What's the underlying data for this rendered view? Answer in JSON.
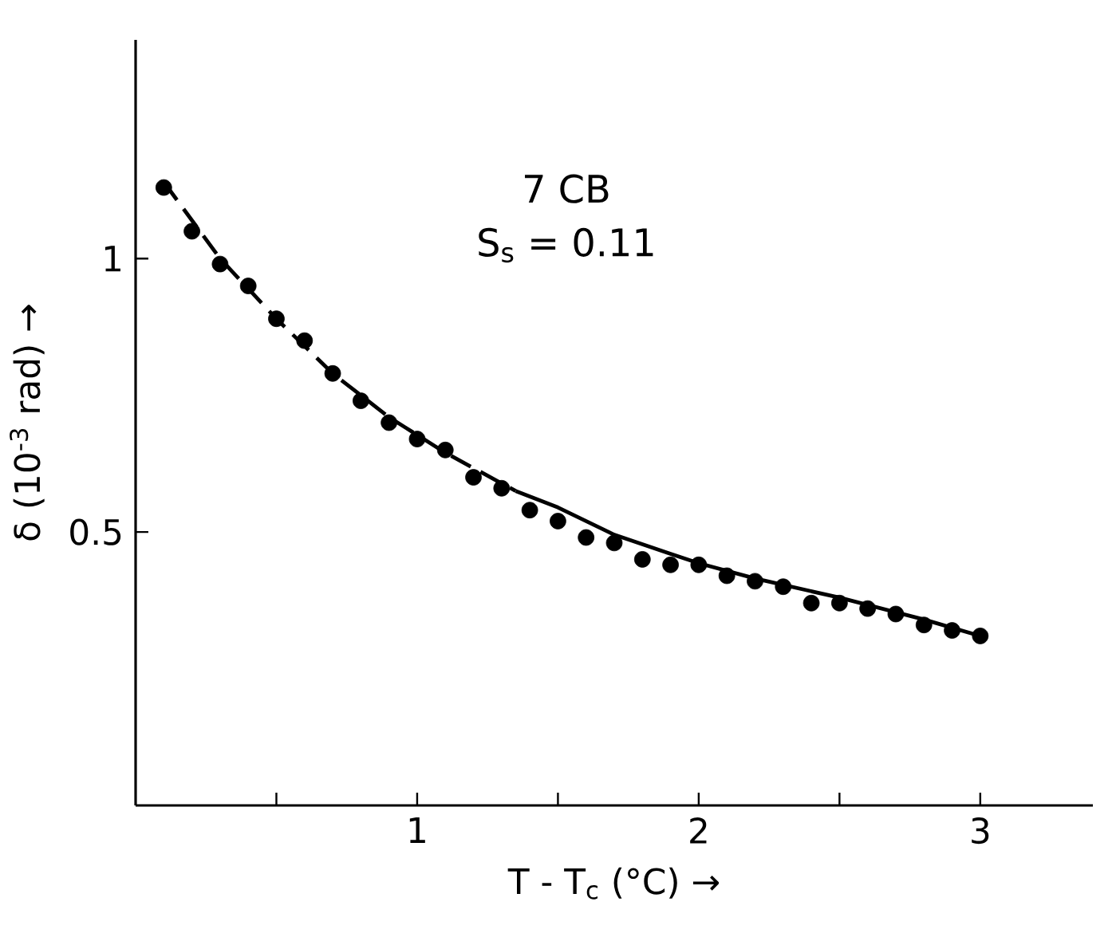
{
  "chart_data": {
    "type": "scatter",
    "xlabel": "T - T$_{c}$ (°C) →",
    "ylabel": "δ (10$^{-3}$ rad) →",
    "annotations": [
      "7 CB",
      "S$_{s}$ = 0.11"
    ],
    "xlim": [
      0,
      3.4
    ],
    "ylim": [
      0,
      1.4
    ],
    "xticks": [
      {
        "value": 0.5,
        "label": null
      },
      1,
      {
        "value": 1.5,
        "label": null
      },
      2,
      {
        "value": 2.5,
        "label": null
      },
      3
    ],
    "yticks": [
      0.5,
      1
    ],
    "grid": false,
    "legend": false,
    "series": [
      {
        "color": "#000000",
        "marker": "circle",
        "x": [
          0.1,
          0.2,
          0.3,
          0.4,
          0.5,
          0.6,
          0.7,
          0.8,
          0.9,
          1.0,
          1.1,
          1.2,
          1.3,
          1.4,
          1.5,
          1.6,
          1.7,
          1.8,
          1.9,
          2.0,
          2.1,
          2.2,
          2.3,
          2.4,
          2.5,
          2.6,
          2.7,
          2.8,
          2.9,
          3.0
        ],
        "values": [
          1.13,
          1.05,
          0.99,
          0.95,
          0.89,
          0.85,
          0.79,
          0.74,
          0.7,
          0.67,
          0.65,
          0.6,
          0.58,
          0.54,
          0.52,
          0.49,
          0.48,
          0.45,
          0.44,
          0.44,
          0.42,
          0.41,
          0.4,
          0.37,
          0.37,
          0.36,
          0.35,
          0.33,
          0.32,
          0.31
        ]
      },
      {
        "type": "line",
        "color": "#000000",
        "marker": "none",
        "line_style": "dashed",
        "x": [
          0.1,
          0.3,
          0.5,
          0.7,
          0.9,
          1.1,
          1.35
        ],
        "values": [
          1.14,
          1.0,
          0.89,
          0.79,
          0.71,
          0.645,
          0.575
        ]
      },
      {
        "type": "line",
        "color": "#000000",
        "marker": "none",
        "line_style": "solid",
        "x": [
          1.35,
          1.5,
          1.7,
          1.9,
          2.0,
          2.2,
          2.5,
          2.8,
          3.0
        ],
        "values": [
          0.575,
          0.545,
          0.495,
          0.46,
          0.443,
          0.415,
          0.38,
          0.34,
          0.31
        ]
      }
    ]
  }
}
